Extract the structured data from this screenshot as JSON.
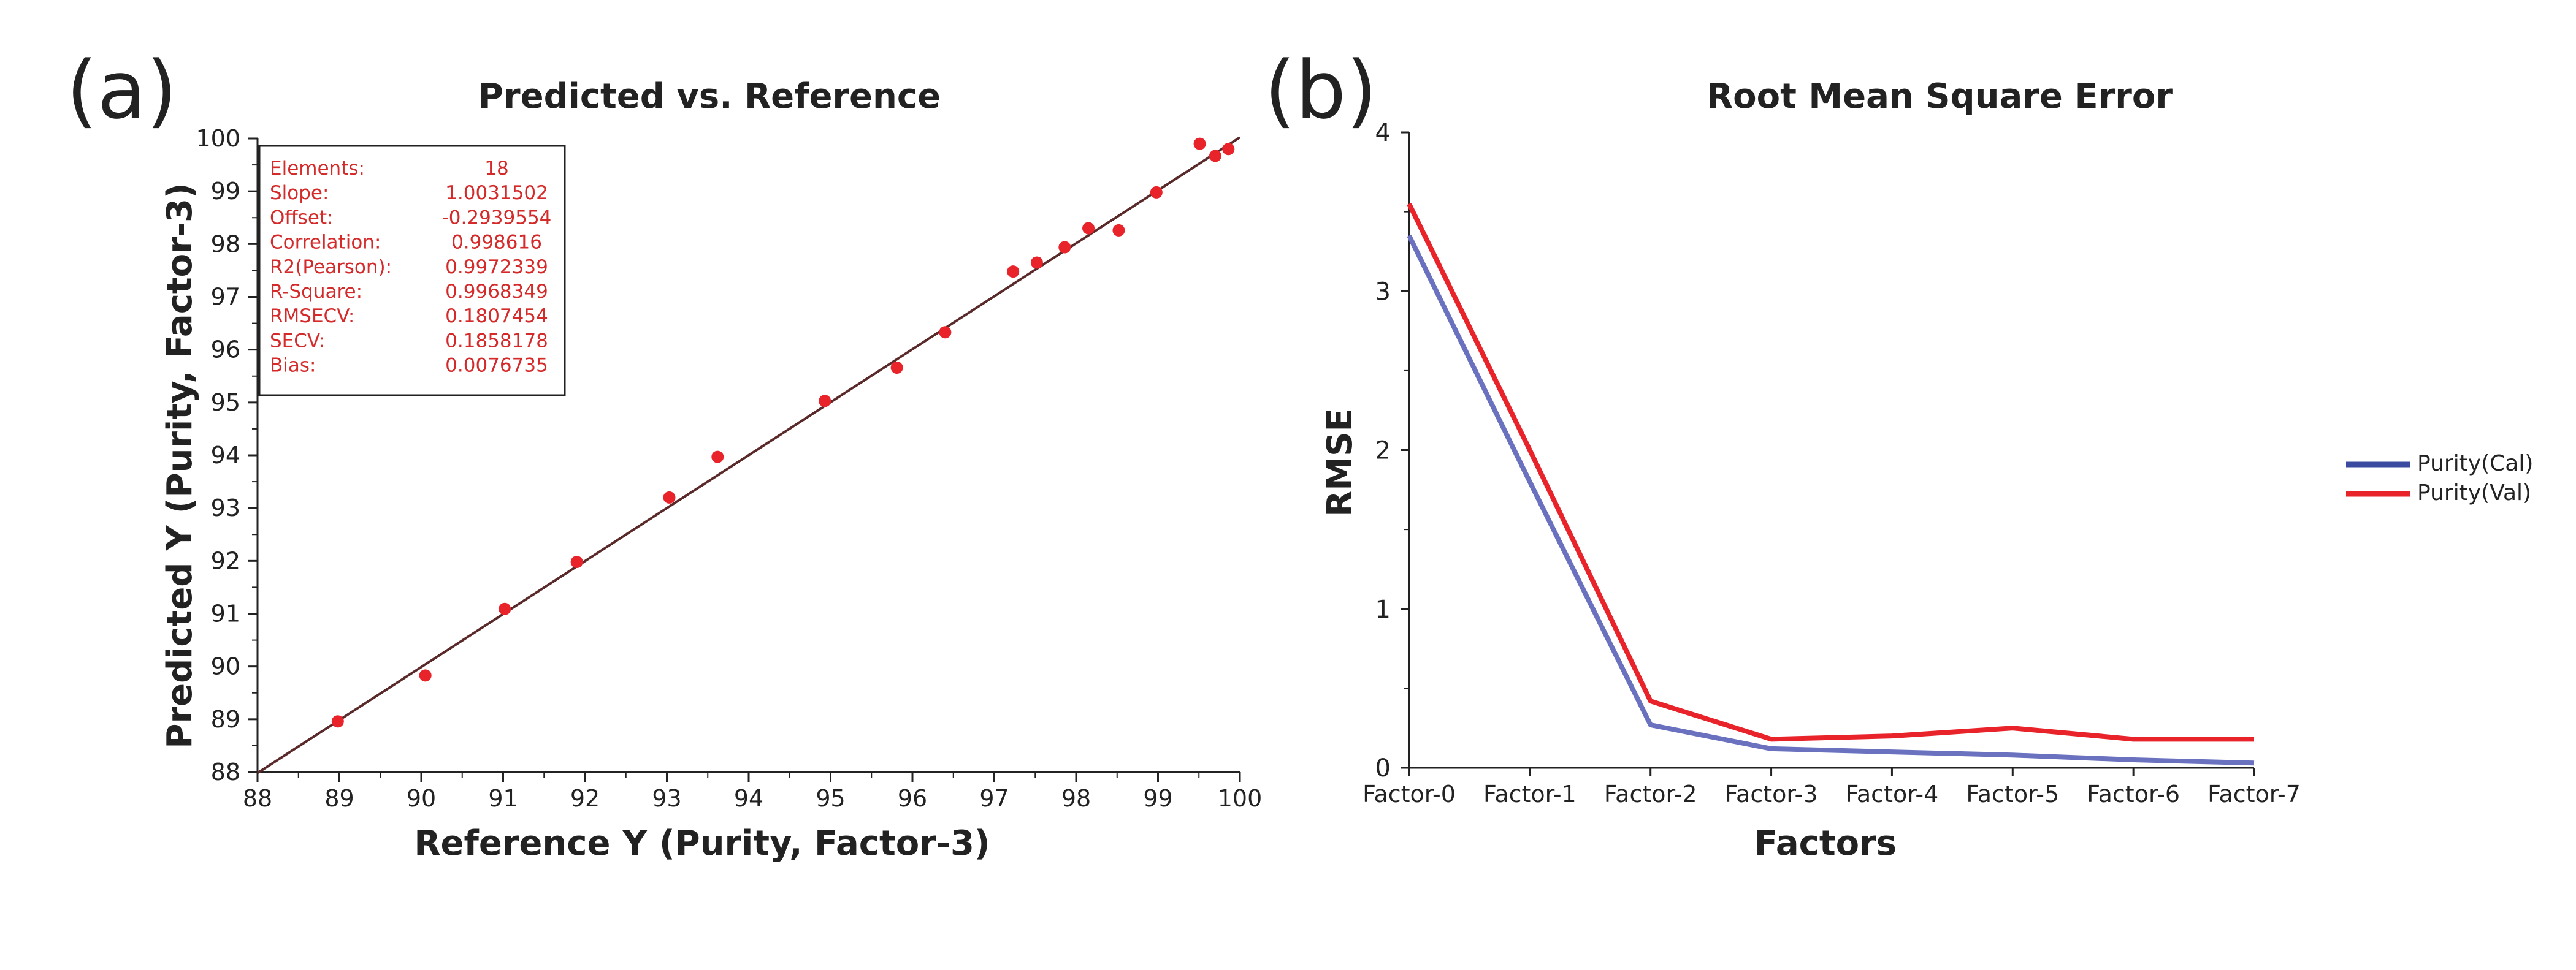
{
  "colors": {
    "text": "#222222",
    "marker": "#e8232a",
    "fit_line": "#5a2a2a",
    "cal": "#6a72c0",
    "cal_legend": "#3a4aa0",
    "val": "#e8232a",
    "stats_text": "#d42a2a"
  },
  "chart_data": [
    {
      "type": "scatter",
      "panel_label": "(a)",
      "title": "Predicted vs. Reference",
      "xlabel": "Reference Y (Purity, Factor-3)",
      "ylabel": "Predicted Y (Purity, Factor-3)",
      "xlim": [
        88,
        100
      ],
      "ylim": [
        88,
        100
      ],
      "xticks": [
        "88",
        "89",
        "90",
        "91",
        "92",
        "93",
        "94",
        "95",
        "96",
        "97",
        "98",
        "99",
        "100"
      ],
      "yticks": [
        "88",
        "89",
        "90",
        "91",
        "92",
        "93",
        "94",
        "95",
        "96",
        "97",
        "98",
        "99",
        "100"
      ],
      "points": [
        [
          88.98,
          88.96
        ],
        [
          90.05,
          89.83
        ],
        [
          91.02,
          91.09
        ],
        [
          91.9,
          91.98
        ],
        [
          93.03,
          93.2
        ],
        [
          93.62,
          93.97
        ],
        [
          94.93,
          95.03
        ],
        [
          95.81,
          95.66
        ],
        [
          96.4,
          96.33
        ],
        [
          97.23,
          97.48
        ],
        [
          97.52,
          97.65
        ],
        [
          97.86,
          97.94
        ],
        [
          98.15,
          98.3
        ],
        [
          98.52,
          98.26
        ],
        [
          98.98,
          98.98
        ],
        [
          99.51,
          99.9
        ],
        [
          99.7,
          99.67
        ],
        [
          99.86,
          99.8
        ]
      ],
      "fit": {
        "slope": 1.0031502,
        "offset": -0.2939554
      },
      "stats": [
        {
          "label": "Elements:",
          "value": "18"
        },
        {
          "label": "Slope:",
          "value": "1.0031502"
        },
        {
          "label": "Offset:",
          "value": "-0.2939554"
        },
        {
          "label": "Correlation:",
          "value": "0.998616"
        },
        {
          "label": "R2(Pearson):",
          "value": "0.9972339"
        },
        {
          "label": "R-Square:",
          "value": "0.9968349"
        },
        {
          "label": "RMSECV:",
          "value": "0.1807454"
        },
        {
          "label": "SECV:",
          "value": "0.1858178"
        },
        {
          "label": "Bias:",
          "value": "0.0076735"
        }
      ]
    },
    {
      "type": "line",
      "panel_label": "(b)",
      "title": "Root Mean Square Error",
      "xlabel": "Factors",
      "ylabel": "RMSE",
      "categories": [
        "Factor-0",
        "Factor-1",
        "Factor-2",
        "Factor-3",
        "Factor-4",
        "Factor-5",
        "Factor-6",
        "Factor-7"
      ],
      "ylim": [
        0,
        4
      ],
      "yticks": [
        "0",
        "1",
        "2",
        "3",
        "4"
      ],
      "series": [
        {
          "name": "Purity(Cal)",
          "values": [
            3.35,
            1.8,
            0.27,
            0.12,
            0.1,
            0.08,
            0.05,
            0.03
          ]
        },
        {
          "name": "Purity(Val)",
          "values": [
            3.55,
            2.0,
            0.42,
            0.18,
            0.2,
            0.25,
            0.18,
            0.18
          ]
        }
      ],
      "legend_position": "right"
    }
  ]
}
